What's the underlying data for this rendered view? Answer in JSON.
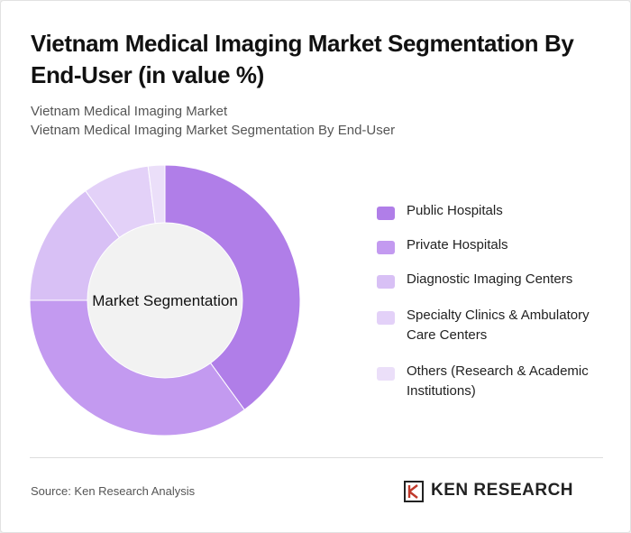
{
  "title": "Vietnam Medical Imaging Market Segmentation By End-User (in value %)",
  "subtitle_1": "Vietnam Medical Imaging Market",
  "subtitle_2": "Vietnam Medical Imaging Market Segmentation By End-User",
  "source": "Source: Ken Research Analysis",
  "logo_text": "KEN RESEARCH",
  "colors": {
    "public": "#b07ee8",
    "private": "#c39af0",
    "diagnostic": "#d8c0f5",
    "specialty": "#e3d1f8",
    "others": "#ebdff9",
    "center": "#f2f2f2"
  },
  "chart_data": {
    "type": "pie",
    "center_label": "Market Segmentation",
    "categories": [
      "Public Hospitals",
      "Private Hospitals",
      "Diagnostic Imaging Centers",
      "Specialty Clinics & Ambulatory Care Centers",
      "Others (Research & Academic Institutions)"
    ],
    "legend_lines": [
      [
        "Public Hospitals"
      ],
      [
        "Private Hospitals"
      ],
      [
        "Diagnostic Imaging Centers"
      ],
      [
        "Specialty Clinics & Ambulatory",
        "Care Centers"
      ],
      [
        "Others (Research & Academic",
        "Institutions)"
      ]
    ],
    "values": [
      40,
      35,
      15,
      8,
      2
    ],
    "legend_position": "right"
  }
}
